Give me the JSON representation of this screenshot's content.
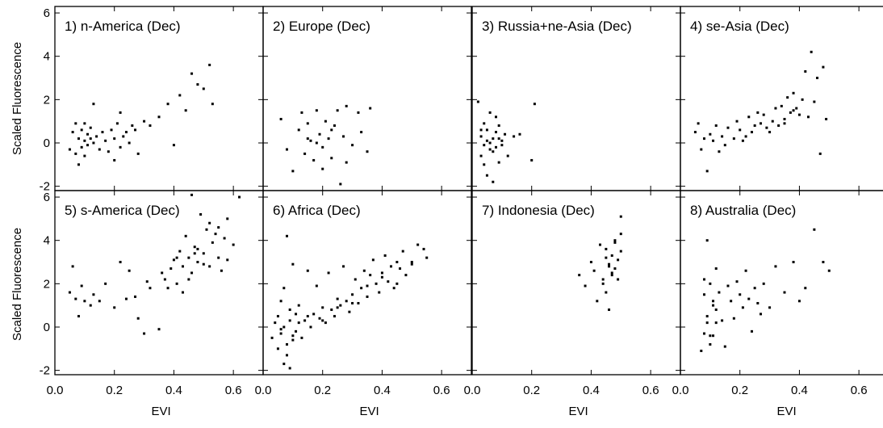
{
  "chart_data": {
    "type": "scatter",
    "xlabel": "EVI",
    "ylabel": "Scaled Fluorescence",
    "xlim": [
      0,
      0.7
    ],
    "ylim": [
      -2.2,
      6.3
    ],
    "x_ticks": [
      "0.0",
      "0.2",
      "0.4",
      "0.6"
    ],
    "y_ticks": [
      "-2",
      "0",
      "2",
      "4",
      "6"
    ],
    "x_tick_values": [
      0,
      0.2,
      0.4,
      0.6
    ],
    "y_tick_values": [
      -2,
      0,
      2,
      4,
      6
    ],
    "point_color": "#000000",
    "panels": [
      {
        "title": "1) n-America  (Dec)",
        "x": [
          0.05,
          0.06,
          0.07,
          0.07,
          0.08,
          0.08,
          0.09,
          0.09,
          0.1,
          0.1,
          0.1,
          0.11,
          0.11,
          0.12,
          0.12,
          0.13,
          0.13,
          0.14,
          0.15,
          0.16,
          0.17,
          0.18,
          0.19,
          0.2,
          0.2,
          0.21,
          0.22,
          0.22,
          0.23,
          0.24,
          0.25,
          0.26,
          0.27,
          0.28,
          0.3,
          0.32,
          0.35,
          0.38,
          0.4,
          0.42,
          0.44,
          0.46,
          0.48,
          0.5,
          0.52,
          0.53
        ],
        "y": [
          -0.3,
          0.5,
          -0.5,
          0.9,
          0.2,
          -1.0,
          0.6,
          -0.2,
          0.1,
          0.9,
          -0.6,
          0.4,
          -0.1,
          0.2,
          0.7,
          0.0,
          1.8,
          0.3,
          -0.3,
          0.5,
          0.1,
          -0.4,
          0.6,
          0.2,
          -0.8,
          0.9,
          1.4,
          -0.2,
          0.3,
          0.5,
          0.0,
          0.8,
          0.6,
          -0.5,
          1.0,
          0.8,
          1.2,
          1.8,
          -0.1,
          2.2,
          1.5,
          3.2,
          2.7,
          2.5,
          3.6,
          1.8
        ]
      },
      {
        "title": "2) Europe  (Dec)",
        "x": [
          0.06,
          0.08,
          0.1,
          0.12,
          0.13,
          0.14,
          0.15,
          0.16,
          0.17,
          0.18,
          0.19,
          0.2,
          0.21,
          0.22,
          0.23,
          0.24,
          0.25,
          0.26,
          0.27,
          0.28,
          0.3,
          0.32,
          0.33,
          0.35,
          0.36,
          0.2,
          0.18,
          0.23,
          0.15,
          0.28
        ],
        "y": [
          1.1,
          -0.3,
          -1.3,
          0.6,
          1.4,
          -0.5,
          0.9,
          0.1,
          -0.8,
          1.5,
          0.4,
          -0.2,
          1.0,
          0.2,
          -0.7,
          0.8,
          1.5,
          -1.9,
          0.3,
          1.7,
          -0.1,
          1.4,
          0.5,
          -0.4,
          1.6,
          -1.2,
          0.0,
          0.6,
          0.2,
          -0.9
        ]
      },
      {
        "title": "3) Russia+ne-Asia  (Dec)",
        "x": [
          0.02,
          0.03,
          0.03,
          0.04,
          0.04,
          0.05,
          0.05,
          0.06,
          0.06,
          0.07,
          0.07,
          0.08,
          0.08,
          0.09,
          0.09,
          0.1,
          0.11,
          0.12,
          0.14,
          0.16,
          0.2,
          0.21,
          0.04,
          0.06,
          0.08,
          0.05,
          0.07,
          0.03,
          0.09,
          0.1
        ],
        "y": [
          1.9,
          0.3,
          -0.6,
          0.9,
          -1.0,
          0.1,
          0.6,
          -0.3,
          1.4,
          0.2,
          -1.8,
          0.5,
          -0.2,
          0.8,
          -0.9,
          0.1,
          0.4,
          -0.6,
          0.3,
          0.4,
          -0.8,
          1.8,
          -0.1,
          0.0,
          1.2,
          -1.5,
          -0.4,
          0.6,
          0.2,
          -0.1
        ]
      },
      {
        "title": "4) se-Asia  (Dec)",
        "x": [
          0.05,
          0.06,
          0.07,
          0.08,
          0.09,
          0.1,
          0.11,
          0.12,
          0.13,
          0.14,
          0.15,
          0.16,
          0.18,
          0.19,
          0.2,
          0.21,
          0.22,
          0.23,
          0.24,
          0.25,
          0.26,
          0.27,
          0.28,
          0.29,
          0.3,
          0.31,
          0.32,
          0.33,
          0.34,
          0.35,
          0.36,
          0.37,
          0.38,
          0.39,
          0.4,
          0.41,
          0.42,
          0.43,
          0.44,
          0.45,
          0.46,
          0.47,
          0.48,
          0.49,
          0.38,
          0.35
        ],
        "y": [
          0.5,
          0.9,
          -0.3,
          0.2,
          -1.3,
          0.4,
          0.1,
          0.8,
          -0.4,
          0.3,
          -0.1,
          0.7,
          0.2,
          1.0,
          0.6,
          0.1,
          0.3,
          1.2,
          0.5,
          0.8,
          1.4,
          0.9,
          1.3,
          0.7,
          0.5,
          1.0,
          1.6,
          0.8,
          1.7,
          1.1,
          2.1,
          1.4,
          2.3,
          1.6,
          1.3,
          2.0,
          3.3,
          1.2,
          4.2,
          1.9,
          3.0,
          -0.5,
          3.5,
          1.1,
          1.5,
          0.9
        ]
      },
      {
        "title": "5) s-America  (Dec)",
        "x": [
          0.05,
          0.06,
          0.07,
          0.08,
          0.09,
          0.1,
          0.12,
          0.13,
          0.15,
          0.17,
          0.2,
          0.22,
          0.24,
          0.25,
          0.27,
          0.28,
          0.3,
          0.31,
          0.32,
          0.35,
          0.36,
          0.37,
          0.38,
          0.4,
          0.41,
          0.42,
          0.43,
          0.44,
          0.45,
          0.46,
          0.47,
          0.48,
          0.49,
          0.5,
          0.51,
          0.52,
          0.53,
          0.54,
          0.55,
          0.56,
          0.57,
          0.58,
          0.6,
          0.62,
          0.45,
          0.48,
          0.5,
          0.52,
          0.43,
          0.41,
          0.39,
          0.47,
          0.55,
          0.58,
          0.46
        ],
        "y": [
          1.6,
          2.8,
          1.3,
          0.5,
          1.9,
          1.2,
          1.0,
          1.5,
          1.2,
          2.0,
          0.9,
          3.0,
          1.3,
          2.6,
          1.4,
          0.4,
          -0.3,
          2.1,
          1.8,
          -0.1,
          2.5,
          2.2,
          1.8,
          3.1,
          2.0,
          3.5,
          2.8,
          4.2,
          3.2,
          2.5,
          3.7,
          3.0,
          5.2,
          3.4,
          4.5,
          2.8,
          3.9,
          4.3,
          3.2,
          2.6,
          4.1,
          5.0,
          3.8,
          6.0,
          2.2,
          3.6,
          2.9,
          4.8,
          1.6,
          3.2,
          2.7,
          3.4,
          4.6,
          3.1,
          6.1
        ]
      },
      {
        "title": "6) Africa  (Dec)",
        "x": [
          0.03,
          0.04,
          0.05,
          0.05,
          0.06,
          0.06,
          0.07,
          0.07,
          0.08,
          0.08,
          0.09,
          0.09,
          0.1,
          0.1,
          0.11,
          0.11,
          0.12,
          0.13,
          0.14,
          0.15,
          0.16,
          0.17,
          0.18,
          0.19,
          0.2,
          0.21,
          0.22,
          0.23,
          0.24,
          0.25,
          0.26,
          0.27,
          0.28,
          0.29,
          0.3,
          0.31,
          0.32,
          0.33,
          0.34,
          0.35,
          0.36,
          0.37,
          0.38,
          0.39,
          0.4,
          0.41,
          0.42,
          0.43,
          0.44,
          0.45,
          0.46,
          0.47,
          0.48,
          0.5,
          0.52,
          0.54,
          0.55,
          0.07,
          0.08,
          0.09,
          0.06,
          0.1,
          0.12,
          0.15,
          0.2,
          0.25,
          0.3,
          0.35,
          0.4,
          0.45,
          0.5
        ],
        "y": [
          -0.5,
          0.2,
          -1.0,
          0.5,
          -0.3,
          1.2,
          -1.7,
          0.0,
          -0.8,
          4.2,
          0.3,
          -1.9,
          -0.4,
          2.9,
          0.6,
          -0.2,
          1.0,
          -0.5,
          0.3,
          2.6,
          0.0,
          0.6,
          1.9,
          0.4,
          0.9,
          0.2,
          2.5,
          0.8,
          0.5,
          1.3,
          1.0,
          2.8,
          1.2,
          0.7,
          1.5,
          2.2,
          1.1,
          1.8,
          2.6,
          1.4,
          2.4,
          3.1,
          2.0,
          1.6,
          2.5,
          3.3,
          2.1,
          2.8,
          1.8,
          3.0,
          2.7,
          3.5,
          2.4,
          3.0,
          3.8,
          3.6,
          3.2,
          1.8,
          -1.3,
          0.8,
          -0.1,
          -0.6,
          0.2,
          0.5,
          0.3,
          0.9,
          1.1,
          1.9,
          2.3,
          2.0,
          2.9
        ]
      },
      {
        "title": "7) Indonesia  (Dec)",
        "x": [
          0.36,
          0.38,
          0.4,
          0.41,
          0.42,
          0.43,
          0.44,
          0.45,
          0.45,
          0.46,
          0.46,
          0.47,
          0.47,
          0.48,
          0.48,
          0.49,
          0.49,
          0.5,
          0.5,
          0.5,
          0.44,
          0.46,
          0.48,
          0.45,
          0.47
        ],
        "y": [
          2.4,
          1.9,
          3.0,
          2.6,
          1.2,
          3.8,
          2.2,
          3.6,
          1.6,
          2.9,
          0.8,
          3.3,
          2.4,
          4.0,
          2.7,
          3.1,
          2.2,
          3.5,
          4.3,
          5.1,
          2.0,
          2.8,
          3.9,
          3.2,
          2.5
        ]
      },
      {
        "title": "8) Australia  (Dec)",
        "x": [
          0.07,
          0.08,
          0.08,
          0.09,
          0.09,
          0.1,
          0.1,
          0.11,
          0.11,
          0.12,
          0.12,
          0.13,
          0.14,
          0.15,
          0.16,
          0.17,
          0.18,
          0.19,
          0.2,
          0.21,
          0.22,
          0.23,
          0.24,
          0.25,
          0.26,
          0.27,
          0.28,
          0.3,
          0.32,
          0.35,
          0.38,
          0.4,
          0.42,
          0.45,
          0.48,
          0.5,
          0.09,
          0.1,
          0.11,
          0.12,
          0.08
        ],
        "y": [
          -1.1,
          1.5,
          -0.3,
          4.0,
          0.2,
          -0.8,
          2.0,
          1.2,
          -0.4,
          0.8,
          2.7,
          1.6,
          0.3,
          -0.9,
          1.9,
          1.2,
          0.4,
          2.1,
          1.5,
          0.9,
          2.6,
          1.3,
          -0.2,
          1.8,
          1.1,
          0.6,
          2.0,
          0.9,
          2.8,
          1.6,
          3.0,
          1.2,
          1.8,
          4.5,
          3.0,
          2.6,
          0.5,
          -0.4,
          1.0,
          0.2,
          2.2
        ]
      }
    ]
  }
}
